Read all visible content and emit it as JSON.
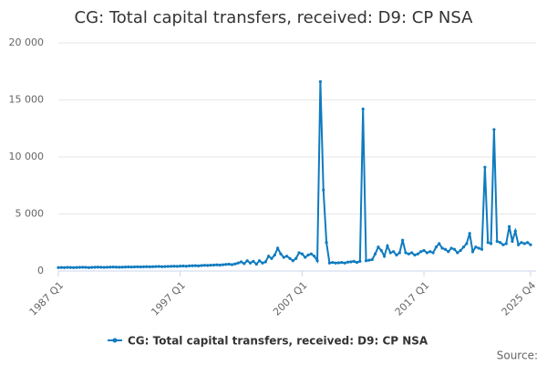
{
  "chart_data": {
    "type": "line",
    "title": "CG: Total capital transfers, received: D9: CP NSA",
    "source": "Source:",
    "categories": [
      "1987 Q1",
      null,
      null,
      null,
      null,
      null,
      null,
      null,
      null,
      null,
      null,
      null,
      null,
      null,
      null,
      null,
      null,
      null,
      null,
      null,
      null,
      null,
      null,
      null,
      null,
      null,
      null,
      null,
      null,
      null,
      null,
      null,
      null,
      null,
      null,
      null,
      null,
      null,
      null,
      null,
      "1997 Q1",
      null,
      null,
      null,
      null,
      null,
      null,
      null,
      null,
      null,
      null,
      null,
      null,
      null,
      null,
      null,
      null,
      null,
      null,
      null,
      null,
      null,
      null,
      null,
      null,
      null,
      null,
      null,
      null,
      null,
      null,
      null,
      null,
      null,
      null,
      null,
      null,
      null,
      null,
      null,
      "2007 Q1",
      null,
      null,
      null,
      null,
      null,
      null,
      null,
      null,
      null,
      null,
      null,
      null,
      null,
      null,
      null,
      null,
      null,
      null,
      null,
      null,
      null,
      null,
      null,
      null,
      null,
      null,
      null,
      null,
      null,
      null,
      null,
      null,
      null,
      null,
      null,
      null,
      null,
      null,
      null,
      "2017 Q1",
      null,
      null,
      null,
      null,
      null,
      null,
      null,
      null,
      null,
      null,
      null,
      null,
      null,
      null,
      null,
      null,
      null,
      null,
      null,
      null,
      null,
      null,
      null,
      null,
      null,
      null,
      null,
      null,
      null,
      null,
      null,
      null,
      null,
      null,
      "2025 Q4"
    ],
    "series": [
      {
        "name": "CG: Total capital transfers, received: D9: CP NSA",
        "color": "#0f7bbf",
        "values": [
          300,
          310,
          300,
          320,
          310,
          300,
          310,
          320,
          330,
          320,
          300,
          320,
          330,
          340,
          330,
          320,
          330,
          340,
          350,
          340,
          330,
          340,
          350,
          360,
          350,
          360,
          370,
          360,
          370,
          380,
          370,
          380,
          390,
          400,
          380,
          390,
          400,
          410,
          420,
          410,
          430,
          440,
          420,
          450,
          460,
          470,
          450,
          480,
          500,
          490,
          510,
          520,
          540,
          520,
          550,
          580,
          600,
          560,
          620,
          700,
          800,
          650,
          900,
          700,
          850,
          600,
          900,
          700,
          800,
          1300,
          1100,
          1400,
          2000,
          1500,
          1200,
          1300,
          1100,
          900,
          1100,
          1600,
          1500,
          1200,
          1400,
          1500,
          1300,
          900,
          16600,
          7100,
          2500,
          700,
          750,
          700,
          720,
          750,
          700,
          780,
          800,
          850,
          750,
          850,
          14200,
          900,
          950,
          1000,
          1500,
          2100,
          1800,
          1300,
          2200,
          1600,
          1700,
          1400,
          1600,
          2700,
          1600,
          1500,
          1600,
          1400,
          1500,
          1700,
          1800,
          1600,
          1700,
          1600,
          2100,
          2400,
          2000,
          1900,
          1700,
          2000,
          1900,
          1600,
          1800,
          2100,
          2400,
          3300,
          1700,
          2100,
          2000,
          1900,
          9100,
          2500,
          2400,
          12400,
          2600,
          2500,
          2300,
          2400,
          3900,
          2600,
          3500,
          2300,
          2500,
          2400,
          2500,
          2300
        ]
      }
    ],
    "ylim": [
      0,
      20000
    ],
    "yticks": [
      0,
      {
        "value": 5000,
        "label": "5 000"
      },
      {
        "value": 10000,
        "label": "10 000"
      },
      {
        "value": 15000,
        "label": "15 000"
      },
      {
        "value": 20000,
        "label": "20 000"
      }
    ],
    "grid": true
  }
}
